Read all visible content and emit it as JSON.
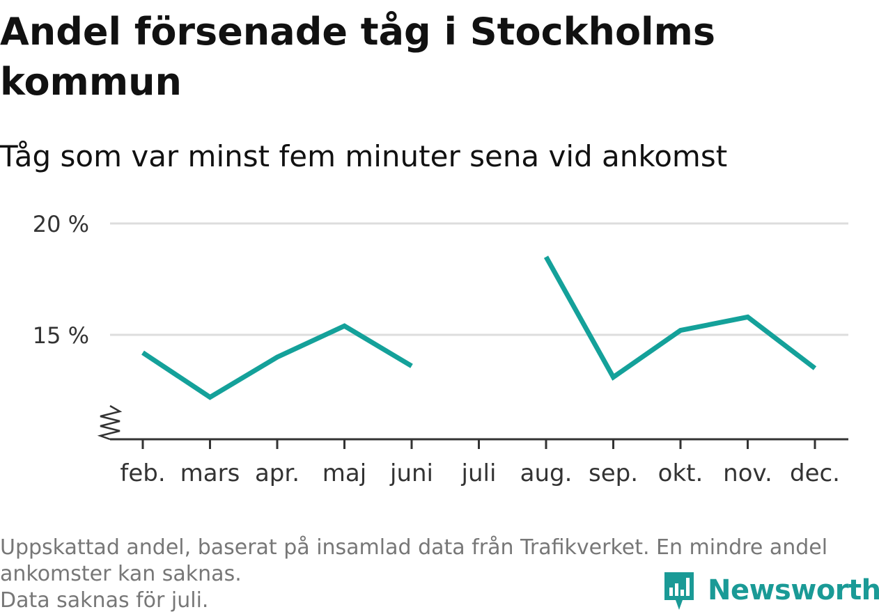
{
  "title": "Andel försenade tåg i Stockholms kommun",
  "subtitle": "Tåg som var minst fem minuter sena vid ankomst",
  "footnote": {
    "line1": "Uppskattad andel, baserat på insamlad data från Trafikverket. En mindre andel",
    "line2": "ankomster kan saknas.",
    "line3": "Data saknas för juli."
  },
  "brand": {
    "name": "Newsworthy",
    "color": "#1a9a96",
    "icon": "newsworthy-logo-icon"
  },
  "chart_data": {
    "type": "line",
    "categories": [
      "feb.",
      "mars",
      "apr.",
      "maj",
      "juni",
      "juli",
      "aug.",
      "sep.",
      "okt.",
      "nov.",
      "dec."
    ],
    "series": [
      {
        "values": [
          14.2,
          12.2,
          14.0,
          15.4,
          13.6,
          null,
          18.5,
          13.1,
          15.2,
          15.8,
          13.5
        ],
        "color": "#14a19a"
      }
    ],
    "yticks": [
      15,
      20
    ],
    "ytick_labels": [
      "15 %",
      "20 %"
    ],
    "ylim": [
      10.5,
      20
    ],
    "y_axis_break": true,
    "grid": true,
    "xlabel": "",
    "ylabel": ""
  }
}
